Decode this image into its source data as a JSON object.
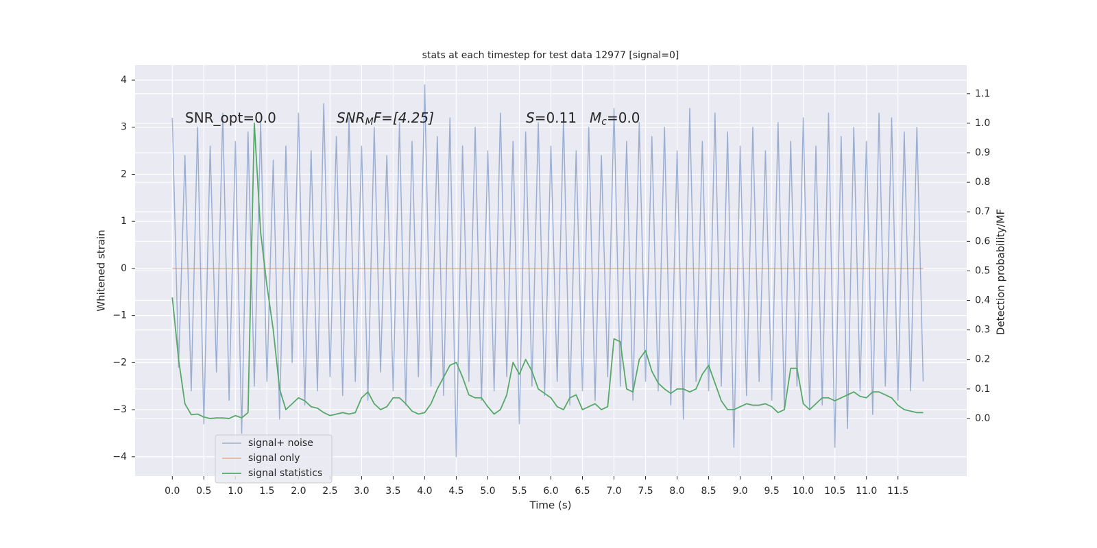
{
  "chart_data": {
    "type": "line",
    "title": "stats at each timestep for test data 12977 [signal=0]",
    "xlabel": "Time (s)",
    "ylabel": "Whitened strain",
    "y2label": "Detection probability/MF",
    "annotations": [
      [
        "SNR_opt=0.0"
      ],
      [
        "SNR",
        "M",
        "F=[4.25]"
      ],
      [
        "S",
        "=0.11",
        "M",
        "c",
        "=0.0"
      ]
    ],
    "x": [
      0,
      0.1,
      0.2,
      0.3,
      0.4,
      0.5,
      0.6,
      0.7,
      0.8,
      0.9,
      1,
      1.1,
      1.2,
      1.3,
      1.4,
      1.5,
      1.6,
      1.7,
      1.8,
      1.9,
      2,
      2.1,
      2.2,
      2.3,
      2.4,
      2.5,
      2.6,
      2.7,
      2.8,
      2.9,
      3,
      3.1,
      3.2,
      3.3,
      3.4,
      3.5,
      3.6,
      3.7,
      3.8,
      3.9,
      4,
      4.1,
      4.2,
      4.3,
      4.4,
      4.5,
      4.6,
      4.7,
      4.8,
      4.9,
      5,
      5.1,
      5.2,
      5.3,
      5.4,
      5.5,
      5.6,
      5.7,
      5.8,
      5.9,
      6,
      6.1,
      6.2,
      6.3,
      6.4,
      6.5,
      6.6,
      6.7,
      6.8,
      6.9,
      7,
      7.1,
      7.2,
      7.3,
      7.4,
      7.5,
      7.6,
      7.7,
      7.8,
      7.9,
      8,
      8.1,
      8.2,
      8.3,
      8.4,
      8.5,
      8.6,
      8.7,
      8.8,
      8.9,
      9,
      9.1,
      9.2,
      9.3,
      9.4,
      9.5,
      9.6,
      9.7,
      9.8,
      9.9,
      10,
      10.1,
      10.2,
      10.3,
      10.4,
      10.5,
      10.6,
      10.7,
      10.8,
      10.9,
      11,
      11.1,
      11.2,
      11.3,
      11.4,
      11.5,
      11.6,
      11.7,
      11.8,
      11.9
    ],
    "series": [
      {
        "name": "signal+ noise",
        "color": "#4c72b0",
        "values": [
          3.2,
          -2.1,
          2.4,
          -2.6,
          3.0,
          -3.3,
          2.6,
          -2.2,
          3.3,
          -2.8,
          2.7,
          -3.5,
          2.9,
          -2.5,
          3.1,
          -2.4,
          2.3,
          -3.2,
          2.6,
          -2.0,
          3.3,
          -2.9,
          2.5,
          -2.6,
          3.5,
          -2.3,
          2.8,
          -2.7,
          3.2,
          -2.4,
          2.6,
          -2.8,
          3.0,
          -2.2,
          2.4,
          -2.6,
          3.1,
          -2.9,
          2.7,
          -2.3,
          3.9,
          -2.5,
          2.8,
          -2.7,
          3.2,
          -4.0,
          2.6,
          -2.4,
          3.0,
          -2.8,
          2.5,
          -2.6,
          3.3,
          -2.3,
          2.7,
          -3.3,
          2.9,
          -2.5,
          3.1,
          -2.7,
          2.6,
          -2.4,
          3.2,
          -2.9,
          2.5,
          -2.6,
          3.0,
          -2.8,
          2.4,
          -2.3,
          3.4,
          -2.5,
          2.7,
          -2.8,
          3.1,
          -2.4,
          2.8,
          -2.6,
          3.0,
          -2.9,
          2.5,
          -3.2,
          3.4,
          -2.4,
          2.7,
          -2.6,
          3.3,
          -2.5,
          2.9,
          -3.8,
          2.6,
          -2.7,
          3.0,
          -2.4,
          2.5,
          -2.8,
          3.1,
          -3.0,
          2.7,
          -2.5,
          3.2,
          -3.0,
          2.6,
          -2.9,
          3.3,
          -3.8,
          2.8,
          -3.4,
          3.0,
          -2.6,
          2.7,
          -3.1,
          3.3,
          -2.5,
          3.2,
          -2.8,
          2.9,
          -2.6,
          3.0,
          -2.4
        ]
      },
      {
        "name": "signal only",
        "color": "#dd8452",
        "values": [
          0,
          0,
          0,
          0,
          0,
          0,
          0,
          0,
          0,
          0,
          0,
          0,
          0,
          0,
          0,
          0,
          0,
          0,
          0,
          0,
          0,
          0,
          0,
          0,
          0,
          0,
          0,
          0,
          0,
          0,
          0,
          0,
          0,
          0,
          0,
          0,
          0,
          0,
          0,
          0,
          0,
          0,
          0,
          0,
          0,
          0,
          0,
          0,
          0,
          0,
          0,
          0,
          0,
          0,
          0,
          0,
          0,
          0,
          0,
          0,
          0,
          0,
          0,
          0,
          0,
          0,
          0,
          0,
          0,
          0,
          0,
          0,
          0,
          0,
          0,
          0,
          0,
          0,
          0,
          0,
          0,
          0,
          0,
          0,
          0,
          0,
          0,
          0,
          0,
          0,
          0,
          0,
          0,
          0,
          0,
          0,
          0,
          0,
          0,
          0,
          0,
          0,
          0,
          0,
          0,
          0,
          0,
          0,
          0,
          0,
          0,
          0,
          0,
          0,
          0,
          0,
          0,
          0,
          0,
          0
        ]
      },
      {
        "name": "signal statistics",
        "color": "#55a868",
        "axis": "y2",
        "values": [
          0.41,
          0.2,
          0.05,
          0.013,
          0.015,
          0.005,
          0.0,
          0.002,
          0.002,
          0.0,
          0.01,
          0.002,
          0.02,
          1.0,
          0.63,
          0.45,
          0.3,
          0.1,
          0.03,
          0.05,
          0.07,
          0.06,
          0.04,
          0.035,
          0.02,
          0.01,
          0.015,
          0.02,
          0.015,
          0.02,
          0.07,
          0.09,
          0.05,
          0.03,
          0.04,
          0.07,
          0.07,
          0.05,
          0.025,
          0.015,
          0.02,
          0.05,
          0.1,
          0.14,
          0.18,
          0.19,
          0.14,
          0.08,
          0.07,
          0.07,
          0.04,
          0.015,
          0.03,
          0.08,
          0.19,
          0.15,
          0.2,
          0.16,
          0.1,
          0.085,
          0.07,
          0.04,
          0.03,
          0.07,
          0.08,
          0.03,
          0.04,
          0.05,
          0.03,
          0.04,
          0.27,
          0.26,
          0.1,
          0.09,
          0.2,
          0.23,
          0.16,
          0.12,
          0.1,
          0.085,
          0.1,
          0.1,
          0.09,
          0.1,
          0.15,
          0.18,
          0.12,
          0.06,
          0.03,
          0.03,
          0.04,
          0.05,
          0.045,
          0.045,
          0.05,
          0.04,
          0.02,
          0.03,
          0.17,
          0.17,
          0.05,
          0.03,
          0.05,
          0.07,
          0.07,
          0.06,
          0.07,
          0.08,
          0.09,
          0.075,
          0.07,
          0.09,
          0.09,
          0.08,
          0.07,
          0.045,
          0.03,
          0.025,
          0.02,
          0.02
        ]
      }
    ],
    "xlim": [
      -0.59,
      12.59
    ],
    "xticks": [
      {
        "value": 0,
        "label": "0.0"
      },
      0.5,
      {
        "value": 1,
        "label": "1.0"
      },
      1.5,
      {
        "value": 2,
        "label": "2.0"
      },
      2.5,
      {
        "value": 3,
        "label": "3.0"
      },
      3.5,
      {
        "value": 4,
        "label": "4.0"
      },
      4.5,
      {
        "value": 5,
        "label": "5.0"
      },
      5.5,
      {
        "value": 6,
        "label": "6.0"
      },
      6.5,
      {
        "value": 7,
        "label": "7.0"
      },
      7.5,
      {
        "value": 8,
        "label": "8.0"
      },
      8.5,
      {
        "value": 9,
        "label": "9.0"
      },
      9.5,
      {
        "value": 10,
        "label": "10.0"
      },
      10.5,
      {
        "value": 11,
        "label": "11.0"
      },
      11.5
    ],
    "ylim": [
      -4.41,
      4.32
    ],
    "yticks": [
      {
        "value": -4,
        "label": "−4"
      },
      {
        "value": -3,
        "label": "−3"
      },
      {
        "value": -2,
        "label": "−2"
      },
      {
        "value": -1,
        "label": "−1"
      },
      0,
      1,
      2,
      3,
      4
    ],
    "y2lim": [
      -0.195,
      1.197
    ],
    "y2ticks": [
      {
        "value": 0,
        "label": "0.0"
      },
      0.1,
      0.2,
      0.3,
      0.4,
      0.5,
      0.6,
      0.7,
      0.8,
      0.9,
      {
        "value": 1,
        "label": "1.0"
      },
      1.1
    ],
    "grid": true,
    "legend": "lower left"
  }
}
